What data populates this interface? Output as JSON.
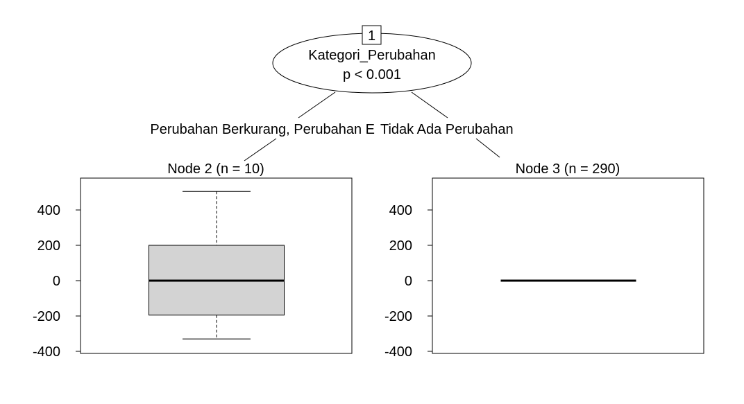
{
  "root_node": {
    "id_label": "1",
    "variable": "Kategori_Perubahan",
    "p_value": "p < 0.001"
  },
  "edges": {
    "left_label": "Perubahan Berkurang, Perubahan E",
    "right_label": "Tidak Ada Perubahan"
  },
  "chart_data": [
    {
      "type": "box",
      "title": "Node 2 (n = 10)",
      "ylim": [
        -400,
        500
      ],
      "yticks": [
        -400,
        -200,
        0,
        200,
        400
      ],
      "ytick_labels": [
        "-400",
        "-200",
        "0",
        "200",
        "400"
      ],
      "box": {
        "whisker_low": -330,
        "q1": -195,
        "median": 0,
        "q3": 200,
        "whisker_high": 505
      },
      "box_fill": "#d3d3d3"
    },
    {
      "type": "box",
      "title": "Node 3 (n = 290)",
      "ylim": [
        -400,
        500
      ],
      "yticks": [
        -400,
        -200,
        0,
        200,
        400
      ],
      "ytick_labels": [
        "-400",
        "-200",
        "0",
        "200",
        "400"
      ],
      "box": {
        "whisker_low": 0,
        "q1": 0,
        "median": 0,
        "q3": 0,
        "whisker_high": 0
      },
      "box_fill": "#d3d3d3"
    }
  ]
}
